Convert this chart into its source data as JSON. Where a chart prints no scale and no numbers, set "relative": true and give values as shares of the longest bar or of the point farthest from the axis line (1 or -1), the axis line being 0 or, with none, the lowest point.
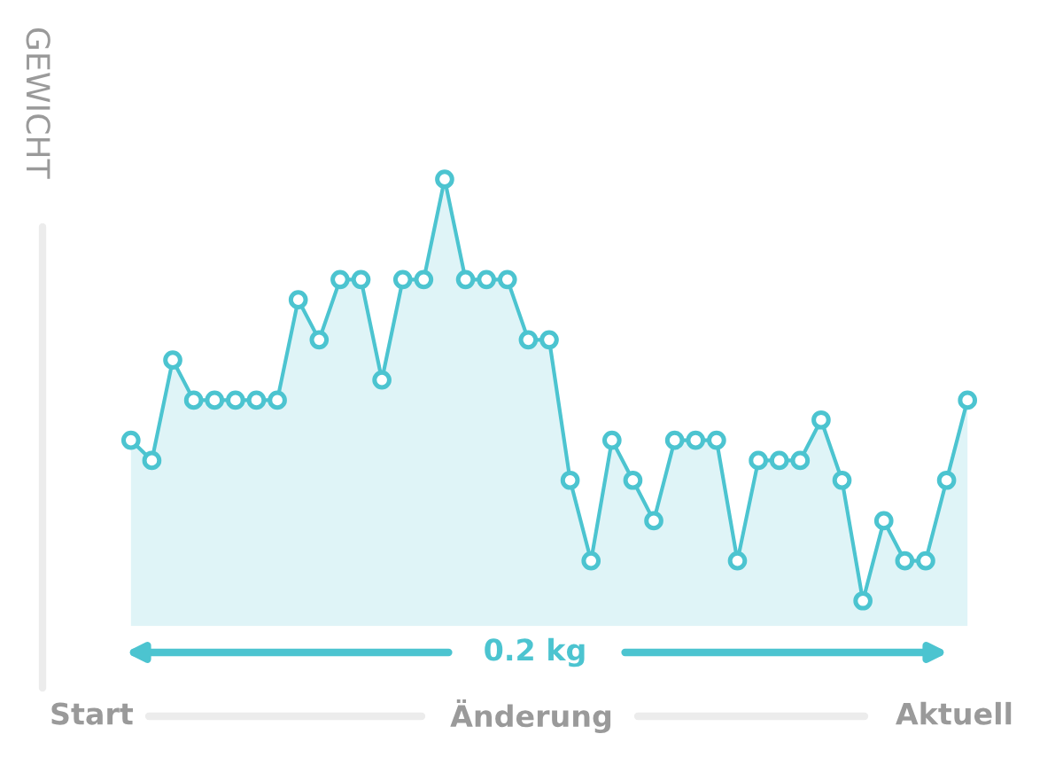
{
  "chart_data": {
    "type": "area",
    "relative": true,
    "ylabel": "GEWICHT",
    "xlabel": "Änderung",
    "annotations": [
      "Start",
      "Aktuell",
      "0.2 kg"
    ],
    "categories": [
      null,
      null,
      null,
      null,
      null,
      null,
      null,
      null,
      null,
      null,
      null,
      null,
      null,
      null,
      null,
      null,
      null,
      null,
      null,
      null,
      null,
      null,
      null,
      null,
      null,
      null,
      null,
      null,
      null,
      null,
      null,
      null,
      null,
      null,
      null,
      null,
      null,
      null,
      null,
      null,
      null
    ],
    "series": [
      {
        "color": "#4cc4d0",
        "values": [
          0.381,
          0.333,
          0.571,
          0.476,
          0.476,
          0.476,
          0.476,
          0.476,
          0.714,
          0.619,
          0.762,
          0.762,
          0.524,
          0.762,
          0.762,
          1,
          0.762,
          0.762,
          0.762,
          0.619,
          0.619,
          0.286,
          0.095,
          0.381,
          0.286,
          0.19,
          0.381,
          0.381,
          0.381,
          0.095,
          0.333,
          0.333,
          0.333,
          0.429,
          0.286,
          0,
          0.19,
          0.095,
          0.095,
          0.286,
          0.476
        ]
      }
    ],
    "marker": "circle",
    "grid": false
  }
}
